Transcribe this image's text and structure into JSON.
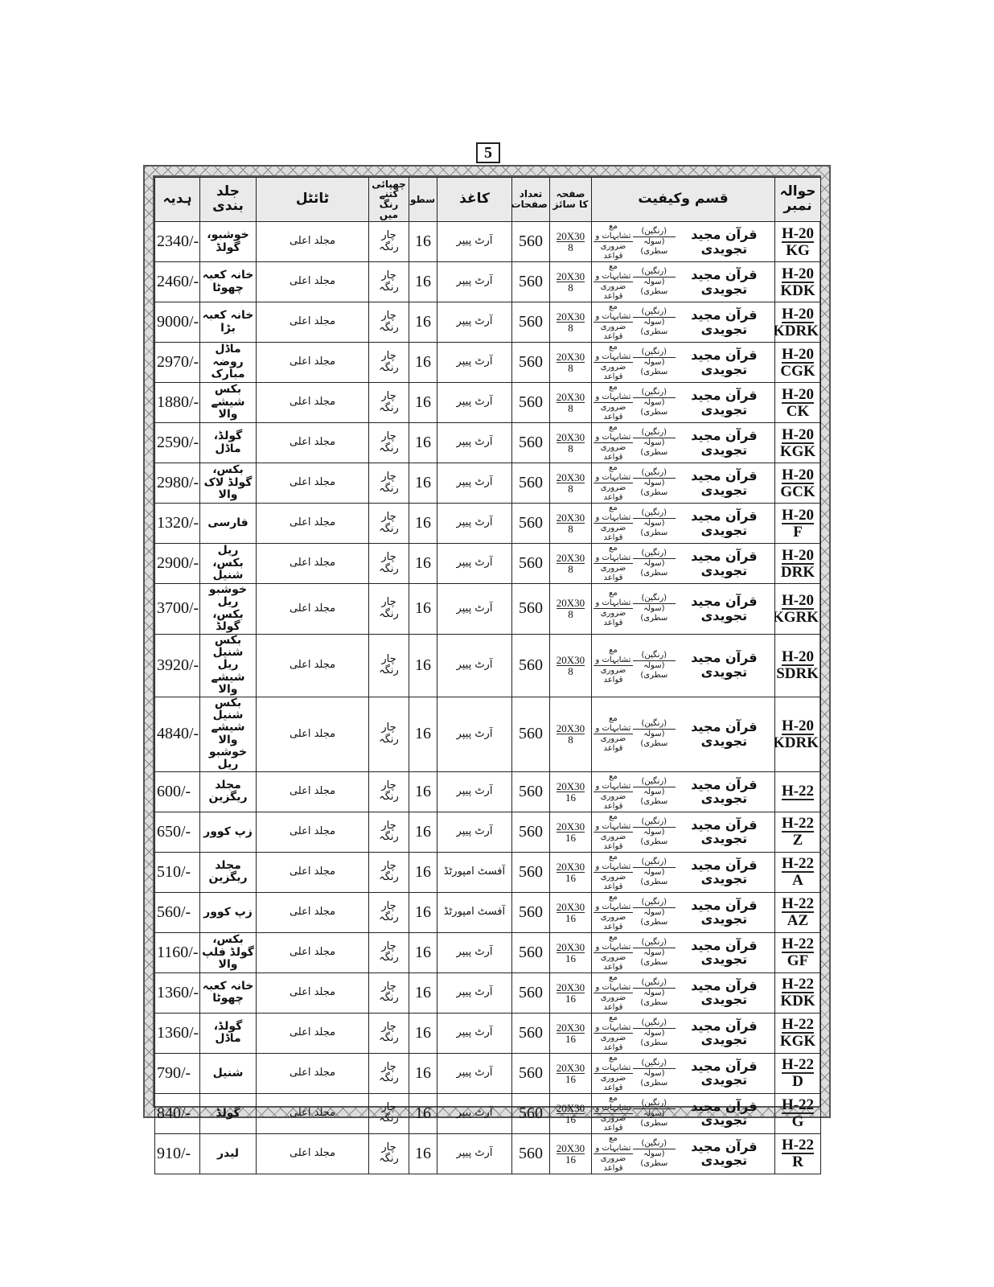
{
  "page_number": "5",
  "headers": {
    "ref": "حوالہ نمبر",
    "description": "قسم وکیفیت",
    "size": "صفحہ کا سائز",
    "pages": "تعداد صفحات",
    "paper": "کاغذ",
    "lines": "سطور",
    "colors": "چھپائی کتنے رنگ میں",
    "title": "ٹائٹل",
    "binding": "جلد بندی",
    "price": "ہدیہ"
  },
  "desc": {
    "main": "قرآن مجید تجویدی",
    "a_top": "(رنگین)",
    "a_bottom": "(سولہ سطری)",
    "b_top": "مع تشابہات و",
    "b_bottom": "ضروری قواعد"
  },
  "rows": [
    {
      "ref_top": "H-20",
      "ref_bottom": "KG",
      "size_top": "20X30",
      "size_bottom": "8",
      "pages": "560",
      "lines": "16",
      "paper": "آرٹ پیپر",
      "colors": "چار رنگہ",
      "title": "مجلد اعلی",
      "binding": "خوشبو، گولڈ",
      "price": "2340/-"
    },
    {
      "ref_top": "H-20",
      "ref_bottom": "KDK",
      "size_top": "20X30",
      "size_bottom": "8",
      "pages": "560",
      "lines": "16",
      "paper": "آرٹ پیپر",
      "colors": "چار رنگہ",
      "title": "مجلد اعلی",
      "binding": "خانہ کعبہ چھوٹا",
      "price": "2460/-"
    },
    {
      "ref_top": "H-20",
      "ref_bottom": "KDRK",
      "size_top": "20X30",
      "size_bottom": "8",
      "pages": "560",
      "lines": "16",
      "paper": "آرٹ پیپر",
      "colors": "چار رنگہ",
      "title": "مجلد اعلی",
      "binding": "خانہ کعبہ بڑا",
      "price": "9000/-"
    },
    {
      "ref_top": "H-20",
      "ref_bottom": "CGK",
      "size_top": "20X30",
      "size_bottom": "8",
      "pages": "560",
      "lines": "16",
      "paper": "آرٹ پیپر",
      "colors": "چار رنگہ",
      "title": "مجلد اعلی",
      "binding": "ماڈل روضہ مبارک",
      "price": "2970/-"
    },
    {
      "ref_top": "H-20",
      "ref_bottom": "CK",
      "size_top": "20X30",
      "size_bottom": "8",
      "pages": "560",
      "lines": "16",
      "paper": "آرٹ پیپر",
      "colors": "چار رنگہ",
      "title": "مجلد اعلی",
      "binding": "بکس شیشے والا",
      "price": "1880/-"
    },
    {
      "ref_top": "H-20",
      "ref_bottom": "KGK",
      "size_top": "20X30",
      "size_bottom": "8",
      "pages": "560",
      "lines": "16",
      "paper": "آرٹ پیپر",
      "colors": "چار رنگہ",
      "title": "مجلد اعلی",
      "binding": "گولڈ، ماڈل",
      "price": "2590/-"
    },
    {
      "ref_top": "H-20",
      "ref_bottom": "GCK",
      "size_top": "20X30",
      "size_bottom": "8",
      "pages": "560",
      "lines": "16",
      "paper": "آرٹ پیپر",
      "colors": "چار رنگہ",
      "title": "مجلد اعلی",
      "binding": "بکس، گولڈ لاک والا",
      "price": "2980/-"
    },
    {
      "ref_top": "H-20",
      "ref_bottom": "F",
      "size_top": "20X30",
      "size_bottom": "8",
      "pages": "560",
      "lines": "16",
      "paper": "آرٹ پیپر",
      "colors": "چار رنگہ",
      "title": "مجلد اعلی",
      "binding": "فارسی",
      "price": "1320/-"
    },
    {
      "ref_top": "H-20",
      "ref_bottom": "DRK",
      "size_top": "20X30",
      "size_bottom": "8",
      "pages": "560",
      "lines": "16",
      "paper": "آرٹ پیپر",
      "colors": "چار رنگہ",
      "title": "مجلد اعلی",
      "binding": "ریل بکس، شنیل",
      "price": "2900/-"
    },
    {
      "ref_top": "H-20",
      "ref_bottom": "KGRK",
      "size_top": "20X30",
      "size_bottom": "8",
      "pages": "560",
      "lines": "16",
      "paper": "آرٹ پیپر",
      "colors": "چار رنگہ",
      "title": "مجلد اعلی",
      "binding": "خوشبو ریل بکس، گولڈ",
      "price": "3700/-"
    },
    {
      "ref_top": "H-20",
      "ref_bottom": "SDRK",
      "size_top": "20X30",
      "size_bottom": "8",
      "pages": "560",
      "lines": "16",
      "paper": "آرٹ پیپر",
      "colors": "چار رنگہ",
      "title": "مجلد اعلی",
      "binding": "بکس شنیل ریل شیشے والا",
      "price": "3920/-"
    },
    {
      "ref_top": "H-20",
      "ref_bottom": "SKDRK",
      "size_top": "20X30",
      "size_bottom": "8",
      "pages": "560",
      "lines": "16",
      "paper": "آرٹ پیپر",
      "colors": "چار رنگہ",
      "title": "مجلد اعلی",
      "binding": "بکس شنیل شیشے والا خوشبو ریل",
      "price": "4840/-"
    },
    {
      "ref_top": "H-22",
      "ref_bottom": "",
      "size_top": "20X30",
      "size_bottom": "16",
      "pages": "560",
      "lines": "16",
      "paper": "آرٹ پیپر",
      "colors": "چار رنگہ",
      "title": "مجلد اعلی",
      "binding": "مجلد ریگزین",
      "price": "600/-"
    },
    {
      "ref_top": "H-22",
      "ref_bottom": "Z",
      "size_top": "20X30",
      "size_bottom": "16",
      "pages": "560",
      "lines": "16",
      "paper": "آرٹ پیپر",
      "colors": "چار رنگہ",
      "title": "مجلد اعلی",
      "binding": "زپ کوور",
      "price": "650/-"
    },
    {
      "ref_top": "H-22",
      "ref_bottom": "A",
      "size_top": "20X30",
      "size_bottom": "16",
      "pages": "560",
      "lines": "16",
      "paper": "آفسٹ امپورٹڈ",
      "colors": "چار رنگہ",
      "title": "مجلد اعلی",
      "binding": "مجلد ریگزین",
      "price": "510/-"
    },
    {
      "ref_top": "H-22",
      "ref_bottom": "AZ",
      "size_top": "20X30",
      "size_bottom": "16",
      "pages": "560",
      "lines": "16",
      "paper": "آفسٹ امپورٹڈ",
      "colors": "چار رنگہ",
      "title": "مجلد اعلی",
      "binding": "زپ کوور",
      "price": "560/-"
    },
    {
      "ref_top": "H-22",
      "ref_bottom": "GF",
      "size_top": "20X30",
      "size_bottom": "16",
      "pages": "560",
      "lines": "16",
      "paper": "آرٹ پیپر",
      "colors": "چار رنگہ",
      "title": "مجلد اعلی",
      "binding": "بکس، گولڈ فلپ والا",
      "price": "1160/-"
    },
    {
      "ref_top": "H-22",
      "ref_bottom": "KDK",
      "size_top": "20X30",
      "size_bottom": "16",
      "pages": "560",
      "lines": "16",
      "paper": "آرٹ پیپر",
      "colors": "چار رنگہ",
      "title": "مجلد اعلی",
      "binding": "خانہ کعبہ چھوٹا",
      "price": "1360/-"
    },
    {
      "ref_top": "H-22",
      "ref_bottom": "KGK",
      "size_top": "20X30",
      "size_bottom": "16",
      "pages": "560",
      "lines": "16",
      "paper": "آرٹ پیپر",
      "colors": "چار رنگہ",
      "title": "مجلد اعلی",
      "binding": "گولڈ، ماڈل",
      "price": "1360/-"
    },
    {
      "ref_top": "H-22",
      "ref_bottom": "D",
      "size_top": "20X30",
      "size_bottom": "16",
      "pages": "560",
      "lines": "16",
      "paper": "آرٹ پیپر",
      "colors": "چار رنگہ",
      "title": "مجلد اعلی",
      "binding": "شنیل",
      "price": "790/-"
    },
    {
      "ref_top": "H-22",
      "ref_bottom": "G",
      "size_top": "20X30",
      "size_bottom": "16",
      "pages": "560",
      "lines": "16",
      "paper": "آرٹ پیپر",
      "colors": "چار رنگہ",
      "title": "مجلد اعلی",
      "binding": "گولڈ",
      "price": "840/-"
    },
    {
      "ref_top": "H-22",
      "ref_bottom": "R",
      "size_top": "20X30",
      "size_bottom": "16",
      "pages": "560",
      "lines": "16",
      "paper": "آرٹ پیپر",
      "colors": "چار رنگہ",
      "title": "مجلد اعلی",
      "binding": "لیدر",
      "price": "910/-"
    }
  ]
}
